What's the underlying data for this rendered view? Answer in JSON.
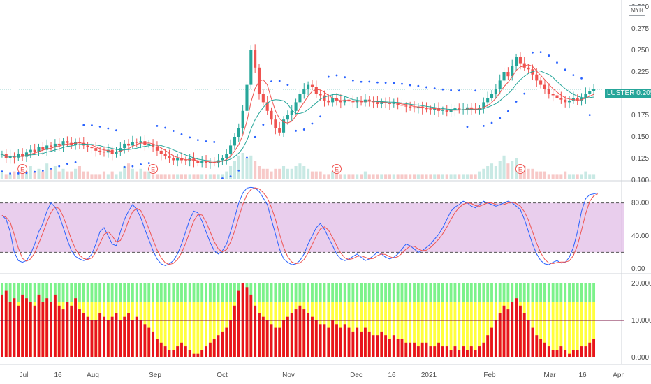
{
  "currency_label": "MYR",
  "symbol": {
    "name": "LUSTER",
    "price": "0.205"
  },
  "x_labels": [
    "Jul",
    "16",
    "Aug",
    "Sep",
    "Oct",
    "Nov",
    "Dec",
    "16",
    "2021",
    "Feb",
    "Mar",
    "16",
    "Apr"
  ],
  "colors": {
    "up": "#26a69a",
    "down": "#ef5350",
    "ma_fast": "#ef5350",
    "ma_slow": "#26a69a",
    "sar": "#2962ff",
    "stoch_band": "#e1bee7",
    "stoch_k": "#2962ff",
    "stoch_d": "#ef5350",
    "hist_red": "#e8141c",
    "hist_yellow": "#ffff3d",
    "hist_green": "#7cf28a"
  },
  "chart_data": [
    {
      "type": "candlestick",
      "panel": "price",
      "ylim": [
        0.1,
        0.3
      ],
      "yticks": [
        "0.100",
        "0.125",
        "0.150",
        "0.175",
        "0.200",
        "0.225",
        "0.250",
        "0.275",
        "0.300"
      ],
      "last_price": 0.205,
      "earnings_markers": [
        "E",
        "E",
        "E",
        "E"
      ],
      "closes": [
        0.13,
        0.125,
        0.128,
        0.126,
        0.13,
        0.127,
        0.132,
        0.135,
        0.133,
        0.138,
        0.135,
        0.14,
        0.138,
        0.142,
        0.14,
        0.145,
        0.143,
        0.141,
        0.144,
        0.143,
        0.14,
        0.138,
        0.137,
        0.134,
        0.133,
        0.132,
        0.135,
        0.13,
        0.133,
        0.137,
        0.142,
        0.14,
        0.144,
        0.143,
        0.145,
        0.141,
        0.142,
        0.138,
        0.134,
        0.13,
        0.128,
        0.125,
        0.123,
        0.125,
        0.123,
        0.122,
        0.125,
        0.122,
        0.12,
        0.122,
        0.12,
        0.121,
        0.12,
        0.123,
        0.125,
        0.13,
        0.14,
        0.15,
        0.16,
        0.18,
        0.21,
        0.25,
        0.23,
        0.2,
        0.19,
        0.18,
        0.17,
        0.16,
        0.155,
        0.17,
        0.175,
        0.18,
        0.19,
        0.2,
        0.205,
        0.21,
        0.208,
        0.2,
        0.198,
        0.192,
        0.19,
        0.195,
        0.192,
        0.19,
        0.193,
        0.191,
        0.19,
        0.192,
        0.19,
        0.193,
        0.191,
        0.19,
        0.188,
        0.19,
        0.189,
        0.188,
        0.19,
        0.187,
        0.186,
        0.185,
        0.184,
        0.183,
        0.185,
        0.183,
        0.182,
        0.181,
        0.183,
        0.18,
        0.181,
        0.179,
        0.181,
        0.183,
        0.181,
        0.182,
        0.184,
        0.182,
        0.181,
        0.183,
        0.19,
        0.195,
        0.2,
        0.205,
        0.215,
        0.225,
        0.22,
        0.232,
        0.242,
        0.235,
        0.23,
        0.228,
        0.222,
        0.215,
        0.21,
        0.205,
        0.2,
        0.198,
        0.195,
        0.193,
        0.19,
        0.192,
        0.195,
        0.192,
        0.195,
        0.2,
        0.203,
        0.205
      ],
      "volume_spikes": [
        0.3,
        0.2,
        0.2,
        0.3,
        0.2,
        0.4,
        0.3,
        0.5,
        0.3,
        0.4,
        0.3,
        0.6,
        0.4,
        0.5,
        0.3,
        0.4,
        0.3,
        0.3,
        0.4,
        0.5,
        0.3,
        0.3,
        0.2,
        0.2,
        0.2,
        0.3,
        0.2,
        0.3,
        0.2,
        0.3,
        0.5,
        0.6,
        0.4,
        0.3,
        0.4,
        0.3,
        0.3,
        0.2,
        0.2,
        0.2,
        0.2,
        0.2,
        0.2,
        0.2,
        0.2,
        0.2,
        0.2,
        0.2,
        0.2,
        0.2,
        0.2,
        0.2,
        0.2,
        0.2,
        0.2,
        0.3,
        0.5,
        0.7,
        0.9,
        1.0,
        0.8,
        0.9,
        0.7,
        0.5,
        0.4,
        0.4,
        0.3,
        0.4,
        0.4,
        0.5,
        0.4,
        0.4,
        0.5,
        0.6,
        0.5,
        0.4,
        0.3,
        0.3,
        0.3,
        0.2,
        0.2,
        0.3,
        0.3,
        0.2,
        0.2,
        0.2,
        0.2,
        0.2,
        0.2,
        0.3,
        0.2,
        0.2,
        0.2,
        0.2,
        0.2,
        0.2,
        0.2,
        0.2,
        0.2,
        0.2,
        0.2,
        0.2,
        0.2,
        0.2,
        0.2,
        0.2,
        0.2,
        0.2,
        0.2,
        0.2,
        0.2,
        0.2,
        0.2,
        0.2,
        0.2,
        0.2,
        0.2,
        0.3,
        0.4,
        0.5,
        0.6,
        0.5,
        0.7,
        0.9,
        0.6,
        0.7,
        0.8,
        0.5,
        0.5,
        0.4,
        0.4,
        0.3,
        0.3,
        0.3,
        0.2,
        0.2,
        0.2,
        0.2,
        0.3,
        0.2,
        0.2,
        0.2,
        0.2,
        0.3,
        0.2,
        0.2
      ]
    },
    {
      "type": "line",
      "panel": "stochastic",
      "ylim": [
        0,
        100
      ],
      "yticks": [
        "0.00",
        "40.00",
        "80.00"
      ],
      "band": [
        20,
        80
      ],
      "k": [
        65,
        60,
        45,
        20,
        10,
        8,
        10,
        18,
        30,
        45,
        55,
        70,
        80,
        75,
        65,
        50,
        35,
        22,
        15,
        12,
        10,
        12,
        18,
        30,
        45,
        50,
        40,
        30,
        28,
        45,
        60,
        70,
        78,
        72,
        62,
        48,
        35,
        22,
        12,
        6,
        4,
        6,
        10,
        18,
        30,
        45,
        60,
        70,
        68,
        58,
        45,
        32,
        22,
        18,
        22,
        30,
        45,
        62,
        80,
        92,
        98,
        99,
        98,
        94,
        86,
        78,
        60,
        42,
        24,
        12,
        8,
        5,
        6,
        10,
        18,
        30,
        40,
        50,
        55,
        48,
        38,
        28,
        18,
        12,
        10,
        12,
        15,
        18,
        14,
        10,
        12,
        16,
        20,
        18,
        14,
        12,
        14,
        18,
        24,
        30,
        28,
        24,
        20,
        22,
        26,
        30,
        36,
        42,
        50,
        60,
        70,
        75,
        78,
        82,
        80,
        76,
        74,
        78,
        82,
        80,
        78,
        76,
        78,
        80,
        82,
        80,
        76,
        72,
        60,
        45,
        30,
        18,
        10,
        6,
        5,
        8,
        10,
        7,
        8,
        14,
        26,
        45,
        70,
        85,
        90,
        91,
        92
      ]
    },
    {
      "type": "bar",
      "panel": "volatility_histogram",
      "ylim": [
        0,
        20
      ],
      "yticks": [
        "0.000",
        "10.000",
        "20.000"
      ],
      "reference_lines": [
        5,
        10,
        15
      ],
      "values": [
        17,
        18,
        15,
        16,
        14,
        17,
        16,
        15,
        14,
        17,
        15,
        16,
        15,
        17,
        14,
        13,
        15,
        14,
        16,
        13,
        12,
        11,
        10,
        10,
        12,
        11,
        10,
        11,
        12,
        10,
        11,
        12,
        10,
        11,
        10,
        9,
        8,
        7,
        5,
        4,
        3,
        2,
        2,
        3,
        4,
        3,
        2,
        1,
        1,
        2,
        3,
        4,
        5,
        6,
        7,
        8,
        10,
        14,
        18,
        20,
        19,
        17,
        14,
        12,
        11,
        10,
        9,
        8,
        8,
        10,
        11,
        12,
        13,
        14,
        13,
        12,
        11,
        10,
        9,
        9,
        8,
        10,
        9,
        8,
        9,
        8,
        7,
        8,
        7,
        8,
        7,
        6,
        6,
        7,
        6,
        5,
        6,
        5,
        5,
        4,
        4,
        4,
        3,
        4,
        4,
        3,
        3,
        4,
        3,
        3,
        2,
        3,
        2,
        3,
        2,
        3,
        2,
        3,
        4,
        6,
        8,
        10,
        12,
        14,
        13,
        15,
        16,
        14,
        12,
        10,
        8,
        6,
        5,
        4,
        3,
        2,
        2,
        3,
        2,
        1,
        2,
        2,
        3,
        3,
        4,
        5
      ]
    }
  ]
}
